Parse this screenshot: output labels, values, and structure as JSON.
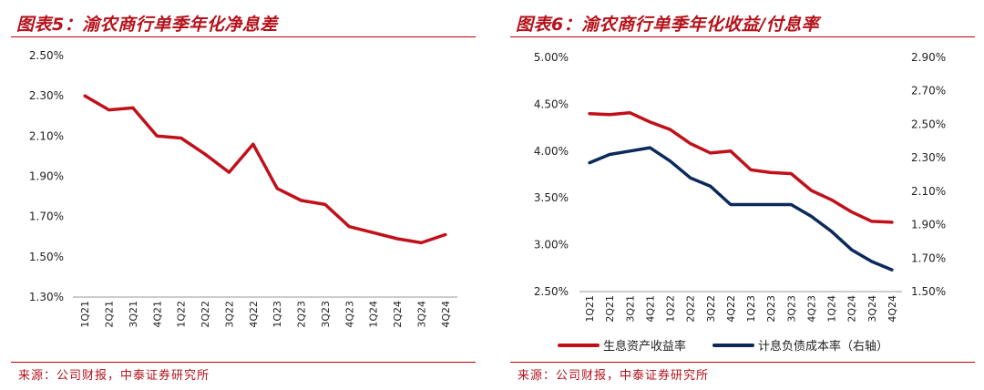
{
  "charts": [
    {
      "title": "图表5：渝农商行单季年化净息差",
      "source": "来源：公司财报，中泰证券研究所"
    },
    {
      "title": "图表6：渝农商行单季年化收益/付息率",
      "source": "来源：公司财报，中泰证券研究所"
    }
  ],
  "chart_data": [
    {
      "type": "line",
      "title": "图表5：渝农商行单季年化净息差",
      "categories": [
        "1Q21",
        "2Q21",
        "3Q21",
        "4Q21",
        "1Q22",
        "2Q22",
        "3Q22",
        "4Q22",
        "1Q23",
        "2Q23",
        "3Q23",
        "4Q23",
        "1Q24",
        "2Q24",
        "3Q24",
        "4Q24"
      ],
      "series": [
        {
          "name": "单季年化净息差",
          "color": "#c0111b",
          "values": [
            2.3,
            2.23,
            2.24,
            2.1,
            2.09,
            2.01,
            1.92,
            2.06,
            1.84,
            1.78,
            1.76,
            1.65,
            1.62,
            1.59,
            1.57,
            1.61
          ]
        }
      ],
      "yticks": [
        "2.50%",
        "2.30%",
        "2.10%",
        "1.90%",
        "1.70%",
        "1.50%",
        "1.30%"
      ],
      "ylim": [
        1.3,
        2.5
      ],
      "legend": []
    },
    {
      "type": "line",
      "title": "图表6：渝农商行单季年化收益/付息率",
      "categories": [
        "1Q21",
        "2Q21",
        "3Q21",
        "4Q21",
        "1Q22",
        "2Q22",
        "3Q22",
        "4Q22",
        "1Q23",
        "2Q23",
        "3Q23",
        "4Q23",
        "1Q24",
        "2Q24",
        "3Q24",
        "4Q24"
      ],
      "series": [
        {
          "name": "生息资产收益率",
          "color": "#c0111b",
          "axis": "left",
          "values": [
            4.4,
            4.39,
            4.41,
            4.31,
            4.23,
            4.08,
            3.98,
            4.0,
            3.8,
            3.77,
            3.76,
            3.58,
            3.48,
            3.35,
            3.25,
            3.24
          ]
        },
        {
          "name": "计息负债成本率（右轴）",
          "color": "#0b2a5b",
          "axis": "right",
          "values": [
            2.27,
            2.32,
            2.34,
            2.36,
            2.28,
            2.18,
            2.13,
            2.02,
            2.02,
            2.02,
            2.02,
            1.95,
            1.86,
            1.75,
            1.68,
            1.63
          ]
        }
      ],
      "yticks_left": [
        "5.00%",
        "4.50%",
        "4.00%",
        "3.50%",
        "3.00%",
        "2.50%"
      ],
      "ylim_left": [
        2.5,
        5.0
      ],
      "yticks_right": [
        "2.90%",
        "2.70%",
        "2.50%",
        "2.30%",
        "2.10%",
        "1.90%",
        "1.70%",
        "1.50%"
      ],
      "ylim_right": [
        1.5,
        2.9
      ],
      "legend": [
        "生息资产收益率",
        "计息负债成本率（右轴）"
      ]
    }
  ]
}
